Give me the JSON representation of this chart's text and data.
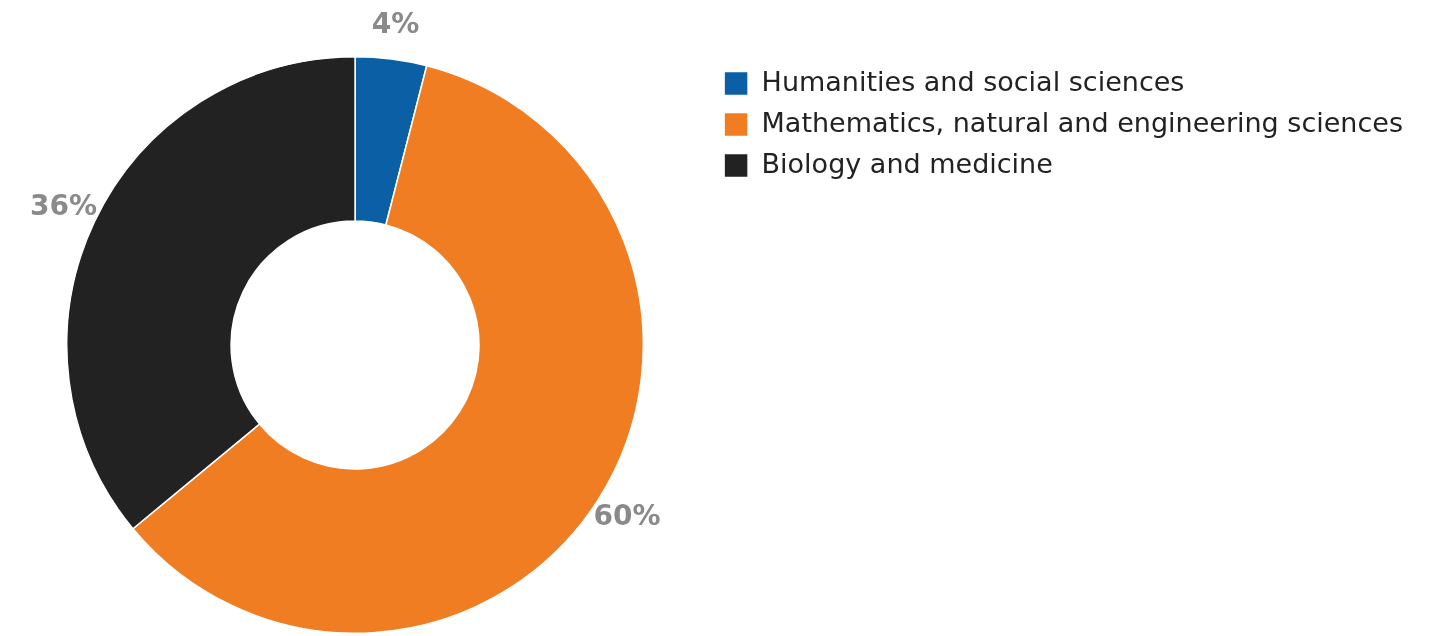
{
  "chart_data": {
    "type": "donut",
    "categories": [
      "Humanities and social sciences",
      "Mathematics, natural and engineering sciences",
      "Biology and medicine"
    ],
    "values": [
      4,
      60,
      36
    ],
    "colors": [
      "#0b5fa5",
      "#f07d22",
      "#222222"
    ],
    "value_labels": [
      "4%",
      "60%",
      "36%"
    ],
    "legend": "top right"
  }
}
